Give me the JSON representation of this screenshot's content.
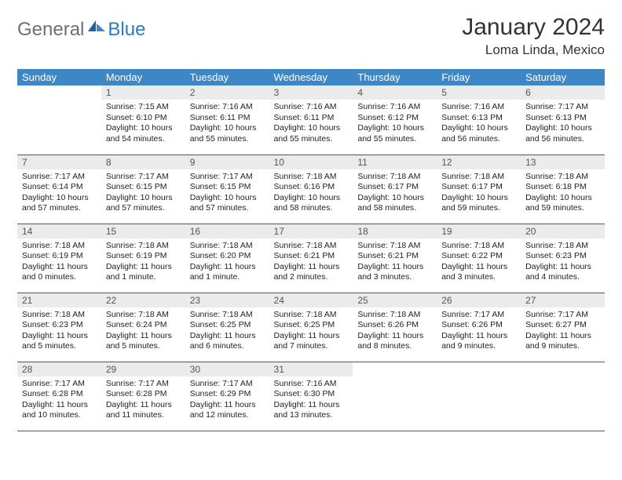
{
  "brand": {
    "general": "General",
    "blue": "Blue"
  },
  "title": "January 2024",
  "location": "Loma Linda, Mexico",
  "colors": {
    "header_bg": "#3d87c7",
    "header_text": "#ffffff",
    "daynum_bg": "#ebebeb",
    "border": "#2b5f8f",
    "logo_gray": "#6f6f6f",
    "logo_blue": "#2b7bbf"
  },
  "day_names": [
    "Sunday",
    "Monday",
    "Tuesday",
    "Wednesday",
    "Thursday",
    "Friday",
    "Saturday"
  ],
  "weeks": [
    [
      {
        "n": "",
        "sr": "",
        "ss": "",
        "dl": ""
      },
      {
        "n": "1",
        "sr": "Sunrise: 7:15 AM",
        "ss": "Sunset: 6:10 PM",
        "dl": "Daylight: 10 hours and 54 minutes."
      },
      {
        "n": "2",
        "sr": "Sunrise: 7:16 AM",
        "ss": "Sunset: 6:11 PM",
        "dl": "Daylight: 10 hours and 55 minutes."
      },
      {
        "n": "3",
        "sr": "Sunrise: 7:16 AM",
        "ss": "Sunset: 6:11 PM",
        "dl": "Daylight: 10 hours and 55 minutes."
      },
      {
        "n": "4",
        "sr": "Sunrise: 7:16 AM",
        "ss": "Sunset: 6:12 PM",
        "dl": "Daylight: 10 hours and 55 minutes."
      },
      {
        "n": "5",
        "sr": "Sunrise: 7:16 AM",
        "ss": "Sunset: 6:13 PM",
        "dl": "Daylight: 10 hours and 56 minutes."
      },
      {
        "n": "6",
        "sr": "Sunrise: 7:17 AM",
        "ss": "Sunset: 6:13 PM",
        "dl": "Daylight: 10 hours and 56 minutes."
      }
    ],
    [
      {
        "n": "7",
        "sr": "Sunrise: 7:17 AM",
        "ss": "Sunset: 6:14 PM",
        "dl": "Daylight: 10 hours and 57 minutes."
      },
      {
        "n": "8",
        "sr": "Sunrise: 7:17 AM",
        "ss": "Sunset: 6:15 PM",
        "dl": "Daylight: 10 hours and 57 minutes."
      },
      {
        "n": "9",
        "sr": "Sunrise: 7:17 AM",
        "ss": "Sunset: 6:15 PM",
        "dl": "Daylight: 10 hours and 57 minutes."
      },
      {
        "n": "10",
        "sr": "Sunrise: 7:18 AM",
        "ss": "Sunset: 6:16 PM",
        "dl": "Daylight: 10 hours and 58 minutes."
      },
      {
        "n": "11",
        "sr": "Sunrise: 7:18 AM",
        "ss": "Sunset: 6:17 PM",
        "dl": "Daylight: 10 hours and 58 minutes."
      },
      {
        "n": "12",
        "sr": "Sunrise: 7:18 AM",
        "ss": "Sunset: 6:17 PM",
        "dl": "Daylight: 10 hours and 59 minutes."
      },
      {
        "n": "13",
        "sr": "Sunrise: 7:18 AM",
        "ss": "Sunset: 6:18 PM",
        "dl": "Daylight: 10 hours and 59 minutes."
      }
    ],
    [
      {
        "n": "14",
        "sr": "Sunrise: 7:18 AM",
        "ss": "Sunset: 6:19 PM",
        "dl": "Daylight: 11 hours and 0 minutes."
      },
      {
        "n": "15",
        "sr": "Sunrise: 7:18 AM",
        "ss": "Sunset: 6:19 PM",
        "dl": "Daylight: 11 hours and 1 minute."
      },
      {
        "n": "16",
        "sr": "Sunrise: 7:18 AM",
        "ss": "Sunset: 6:20 PM",
        "dl": "Daylight: 11 hours and 1 minute."
      },
      {
        "n": "17",
        "sr": "Sunrise: 7:18 AM",
        "ss": "Sunset: 6:21 PM",
        "dl": "Daylight: 11 hours and 2 minutes."
      },
      {
        "n": "18",
        "sr": "Sunrise: 7:18 AM",
        "ss": "Sunset: 6:21 PM",
        "dl": "Daylight: 11 hours and 3 minutes."
      },
      {
        "n": "19",
        "sr": "Sunrise: 7:18 AM",
        "ss": "Sunset: 6:22 PM",
        "dl": "Daylight: 11 hours and 3 minutes."
      },
      {
        "n": "20",
        "sr": "Sunrise: 7:18 AM",
        "ss": "Sunset: 6:23 PM",
        "dl": "Daylight: 11 hours and 4 minutes."
      }
    ],
    [
      {
        "n": "21",
        "sr": "Sunrise: 7:18 AM",
        "ss": "Sunset: 6:23 PM",
        "dl": "Daylight: 11 hours and 5 minutes."
      },
      {
        "n": "22",
        "sr": "Sunrise: 7:18 AM",
        "ss": "Sunset: 6:24 PM",
        "dl": "Daylight: 11 hours and 5 minutes."
      },
      {
        "n": "23",
        "sr": "Sunrise: 7:18 AM",
        "ss": "Sunset: 6:25 PM",
        "dl": "Daylight: 11 hours and 6 minutes."
      },
      {
        "n": "24",
        "sr": "Sunrise: 7:18 AM",
        "ss": "Sunset: 6:25 PM",
        "dl": "Daylight: 11 hours and 7 minutes."
      },
      {
        "n": "25",
        "sr": "Sunrise: 7:18 AM",
        "ss": "Sunset: 6:26 PM",
        "dl": "Daylight: 11 hours and 8 minutes."
      },
      {
        "n": "26",
        "sr": "Sunrise: 7:17 AM",
        "ss": "Sunset: 6:26 PM",
        "dl": "Daylight: 11 hours and 9 minutes."
      },
      {
        "n": "27",
        "sr": "Sunrise: 7:17 AM",
        "ss": "Sunset: 6:27 PM",
        "dl": "Daylight: 11 hours and 9 minutes."
      }
    ],
    [
      {
        "n": "28",
        "sr": "Sunrise: 7:17 AM",
        "ss": "Sunset: 6:28 PM",
        "dl": "Daylight: 11 hours and 10 minutes."
      },
      {
        "n": "29",
        "sr": "Sunrise: 7:17 AM",
        "ss": "Sunset: 6:28 PM",
        "dl": "Daylight: 11 hours and 11 minutes."
      },
      {
        "n": "30",
        "sr": "Sunrise: 7:17 AM",
        "ss": "Sunset: 6:29 PM",
        "dl": "Daylight: 11 hours and 12 minutes."
      },
      {
        "n": "31",
        "sr": "Sunrise: 7:16 AM",
        "ss": "Sunset: 6:30 PM",
        "dl": "Daylight: 11 hours and 13 minutes."
      },
      {
        "n": "",
        "sr": "",
        "ss": "",
        "dl": ""
      },
      {
        "n": "",
        "sr": "",
        "ss": "",
        "dl": ""
      },
      {
        "n": "",
        "sr": "",
        "ss": "",
        "dl": ""
      }
    ]
  ]
}
